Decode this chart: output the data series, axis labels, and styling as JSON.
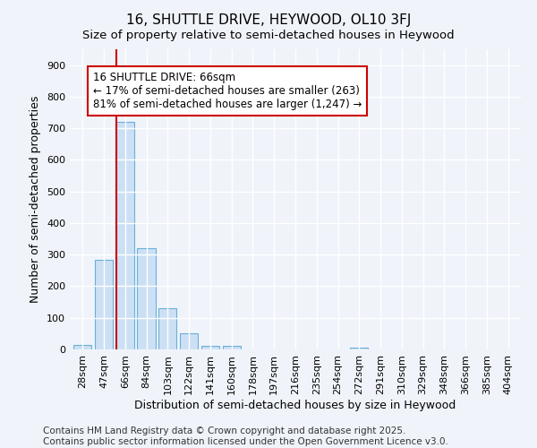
{
  "title": "16, SHUTTLE DRIVE, HEYWOOD, OL10 3FJ",
  "subtitle": "Size of property relative to semi-detached houses in Heywood",
  "xlabel": "Distribution of semi-detached houses by size in Heywood",
  "ylabel": "Number of semi-detached properties",
  "categories": [
    "28sqm",
    "47sqm",
    "66sqm",
    "84sqm",
    "103sqm",
    "122sqm",
    "141sqm",
    "160sqm",
    "178sqm",
    "197sqm",
    "216sqm",
    "235sqm",
    "254sqm",
    "272sqm",
    "291sqm",
    "310sqm",
    "329sqm",
    "348sqm",
    "366sqm",
    "385sqm",
    "404sqm"
  ],
  "values": [
    15,
    285,
    720,
    320,
    130,
    50,
    12,
    12,
    0,
    0,
    0,
    0,
    0,
    5,
    0,
    0,
    0,
    0,
    0,
    0,
    0
  ],
  "bar_color": "#cce0f5",
  "bar_edge_color": "#6baed6",
  "vline_x": 2,
  "vline_color": "#cc0000",
  "annotation_text": "16 SHUTTLE DRIVE: 66sqm\n← 17% of semi-detached houses are smaller (263)\n81% of semi-detached houses are larger (1,247) →",
  "annotation_box_color": "#ffffff",
  "annotation_box_edge_color": "#cc0000",
  "ylim": [
    0,
    950
  ],
  "yticks": [
    0,
    100,
    200,
    300,
    400,
    500,
    600,
    700,
    800,
    900
  ],
  "footer_text": "Contains HM Land Registry data © Crown copyright and database right 2025.\nContains public sector information licensed under the Open Government Licence v3.0.",
  "bg_color": "#f0f4fa",
  "plot_bg_color": "#f0f4fa",
  "title_fontsize": 11,
  "subtitle_fontsize": 9.5,
  "axis_label_fontsize": 9,
  "tick_fontsize": 8,
  "annotation_fontsize": 8.5,
  "footer_fontsize": 7.5
}
